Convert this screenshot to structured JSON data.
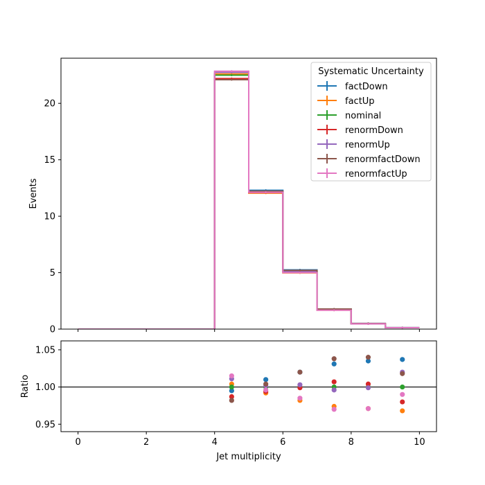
{
  "chart_data": {
    "type": "step",
    "x": {
      "label": "Jet multiplicity",
      "range": [
        -0.5,
        10.5
      ],
      "ticks": [
        0,
        2,
        4,
        6,
        8,
        10
      ],
      "bin_edges": [
        0,
        1,
        2,
        3,
        4,
        5,
        6,
        7,
        8,
        9,
        10
      ]
    },
    "top": {
      "ylabel": "Events",
      "ylim": [
        0,
        24
      ],
      "yticks": [
        0,
        5,
        10,
        15,
        20
      ]
    },
    "bottom": {
      "ylabel": "Ratio",
      "ylim": [
        0.94,
        1.062
      ],
      "yticks": [
        0.95,
        1.0,
        1.05
      ],
      "ytick_labels": [
        "0.95",
        "1.00",
        "1.05"
      ],
      "reference_line": 1.0,
      "bin_centers": [
        4.5,
        5.5,
        6.5,
        7.5,
        8.5,
        9.5
      ]
    },
    "legend": {
      "title": "Systematic Uncertainty",
      "placement": "top-right"
    },
    "series": [
      {
        "name": "factDown",
        "color": "#1f77b4",
        "values": [
          0,
          0,
          0,
          0,
          22.55,
          12.3,
          5.25,
          1.78,
          0.5,
          0.13
        ],
        "ratio": [
          0.995,
          1.01,
          1.02,
          1.031,
          1.035,
          1.037
        ]
      },
      {
        "name": "factUp",
        "color": "#ff7f0e",
        "values": [
          0,
          0,
          0,
          0,
          22.6,
          12.05,
          4.98,
          1.68,
          0.46,
          0.12
        ],
        "ratio": [
          1.004,
          0.992,
          0.982,
          0.974,
          0.971,
          0.968
        ]
      },
      {
        "name": "nominal",
        "color": "#2ca02c",
        "values": [
          0,
          0,
          0,
          0,
          22.5,
          12.17,
          5.1,
          1.72,
          0.48,
          0.125
        ],
        "ratio": [
          1.0,
          1.0,
          1.0,
          1.0,
          1.0,
          1.0
        ]
      },
      {
        "name": "renormDown",
        "color": "#d62728",
        "values": [
          0,
          0,
          0,
          0,
          22.2,
          12.1,
          5.1,
          1.73,
          0.48,
          0.12
        ],
        "ratio": [
          0.987,
          0.994,
          0.999,
          1.007,
          1.004,
          0.98
        ]
      },
      {
        "name": "renormUp",
        "color": "#9467bd",
        "values": [
          0,
          0,
          0,
          0,
          22.75,
          12.2,
          5.12,
          1.71,
          0.47,
          0.125
        ],
        "ratio": [
          1.011,
          1.002,
          1.003,
          0.996,
          0.999,
          1.02
        ]
      },
      {
        "name": "renormfactDown",
        "color": "#8c564b",
        "values": [
          0,
          0,
          0,
          0,
          22.1,
          12.22,
          5.2,
          1.78,
          0.5,
          0.13
        ],
        "ratio": [
          0.982,
          1.004,
          1.02,
          1.038,
          1.04,
          1.018
        ]
      },
      {
        "name": "renormfactUp",
        "color": "#e377c2",
        "values": [
          0,
          0,
          0,
          0,
          22.85,
          12.12,
          5.0,
          1.67,
          0.465,
          0.12
        ],
        "ratio": [
          1.015,
          0.996,
          0.985,
          0.97,
          0.971,
          0.99
        ]
      }
    ]
  }
}
